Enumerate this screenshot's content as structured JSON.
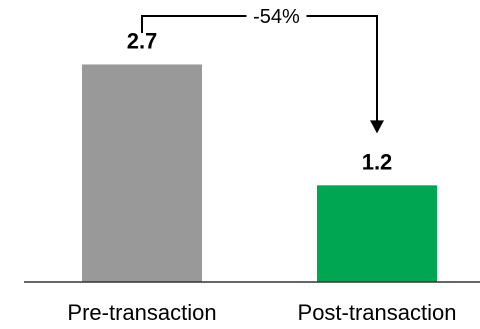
{
  "chart_data": {
    "type": "bar",
    "categories": [
      "Pre-transaction",
      "Post-transaction"
    ],
    "values": [
      2.7,
      1.2
    ],
    "value_labels": [
      "2.7",
      "1.2"
    ],
    "colors": [
      "#999999",
      "#00a651"
    ],
    "ylim": [
      0,
      3.5
    ],
    "grid": false,
    "legend": "none",
    "annotations": [
      {
        "text": "-54%",
        "from": "Pre-transaction",
        "to": "Post-transaction"
      }
    ]
  }
}
